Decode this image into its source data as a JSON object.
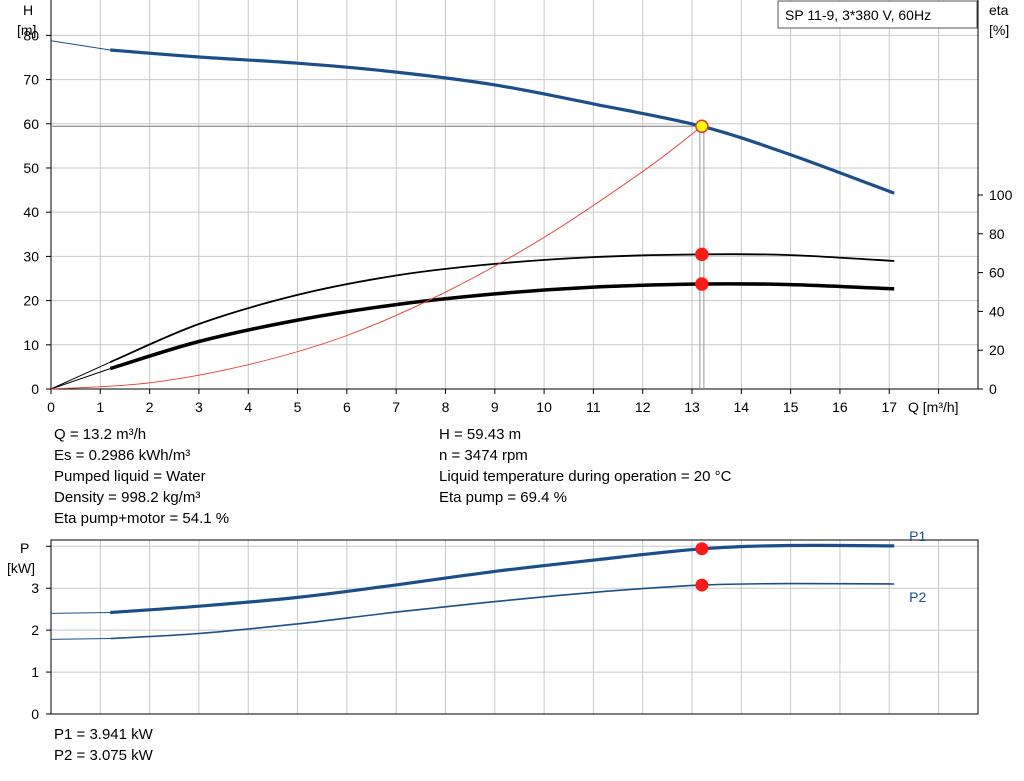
{
  "chart_data": [
    {
      "type": "line",
      "title": "SP 11-9, 3*380 V, 60Hz",
      "xlabel": "Q [m³/h]",
      "ylabel_left": [
        "H",
        "[m]"
      ],
      "ylabel_right": [
        "eta",
        "[%]"
      ],
      "xlim": [
        0,
        18.8
      ],
      "ylim_left": [
        0,
        88
      ],
      "ylim_right": [
        0,
        100
      ],
      "x_ticks": [
        0,
        1,
        2,
        3,
        4,
        5,
        6,
        7,
        8,
        9,
        10,
        11,
        12,
        13,
        14,
        15,
        16,
        17
      ],
      "y_ticks_left": [
        0,
        10,
        20,
        30,
        40,
        50,
        60,
        70,
        80
      ],
      "y_ticks_right": [
        0,
        20,
        40,
        60,
        80,
        100
      ],
      "grid": true,
      "series": [
        {
          "axis": "left",
          "color": "#1a4f8a",
          "width": 3.2,
          "x": [
            1.2,
            3,
            5,
            7,
            9,
            11,
            13.2,
            15,
            17.1
          ],
          "y": [
            76.7,
            75.1,
            73.7,
            71.7,
            68.8,
            64.5,
            59.43,
            53.0,
            44.3
          ]
        },
        {
          "axis": "left",
          "color": "#1a4f8a",
          "width": 1,
          "x": [
            0,
            1.2
          ],
          "y": [
            78.8,
            76.7
          ]
        },
        {
          "axis": "right",
          "color": "#000000",
          "width": 1.8,
          "x": [
            1.2,
            3,
            5,
            7,
            9,
            11,
            13.2,
            15,
            17.1
          ],
          "y": [
            13.8,
            33.5,
            48.5,
            58.5,
            64.5,
            68,
            69.4,
            69,
            66
          ]
        },
        {
          "axis": "right",
          "color": "#000000",
          "width": 1,
          "x": [
            0,
            1.2
          ],
          "y": [
            0,
            13.8
          ]
        },
        {
          "axis": "right",
          "color": "#000000",
          "width": 3.5,
          "x": [
            1.2,
            3,
            5,
            7,
            9,
            11,
            13.2,
            15,
            17.1
          ],
          "y": [
            10.5,
            24.5,
            35.5,
            43.5,
            49,
            52.5,
            54.1,
            53.8,
            51.6
          ]
        },
        {
          "axis": "right",
          "color": "#000000",
          "width": 1,
          "x": [
            0,
            1.2
          ],
          "y": [
            0,
            10.5
          ]
        },
        {
          "axis": "left",
          "color": "#e53935",
          "width": 0.9,
          "x": [
            0,
            2,
            4,
            6,
            8,
            10,
            12,
            13.2
          ],
          "y": [
            0,
            1.4,
            5.5,
            12.1,
            21.9,
            34.3,
            49.2,
            59.43
          ]
        }
      ],
      "points": [
        {
          "x": 13.2,
          "y": 59.43,
          "axis": "left",
          "fill": "#ffff00",
          "stroke": "#e53935"
        },
        {
          "x": 13.2,
          "y": 69.4,
          "axis": "right",
          "fill": "#ff1a1a",
          "stroke": "#ff1a1a"
        },
        {
          "x": 13.2,
          "y": 54.1,
          "axis": "right",
          "fill": "#ff1a1a",
          "stroke": "#ff1a1a"
        }
      ],
      "duty_point": {
        "x": 13.2,
        "y": 59.43
      }
    },
    {
      "type": "line",
      "ylabel_left": [
        "P",
        "[kW]"
      ],
      "xlim": [
        0,
        18.8
      ],
      "ylim": [
        0,
        4.15
      ],
      "y_ticks": [
        0,
        1,
        2,
        3
      ],
      "grid": true,
      "series": [
        {
          "name": "P1",
          "color": "#1a4f8a",
          "width": 3.2,
          "x": [
            1.2,
            3,
            5,
            7,
            9,
            11,
            13.2,
            15,
            17.1
          ],
          "y": [
            2.42,
            2.57,
            2.78,
            3.08,
            3.4,
            3.67,
            3.941,
            4.02,
            4.01
          ]
        },
        {
          "name": "",
          "color": "#1a4f8a",
          "width": 1,
          "x": [
            0,
            1.2
          ],
          "y": [
            2.4,
            2.42
          ]
        },
        {
          "name": "P2",
          "color": "#1a4f8a",
          "width": 1.6,
          "x": [
            1.2,
            3,
            5,
            7,
            9,
            11,
            13.2,
            15,
            17.1
          ],
          "y": [
            1.8,
            1.92,
            2.15,
            2.43,
            2.68,
            2.9,
            3.075,
            3.11,
            3.1
          ]
        },
        {
          "name": "",
          "color": "#1a4f8a",
          "width": 1,
          "x": [
            0,
            1.2
          ],
          "y": [
            1.78,
            1.8
          ]
        }
      ],
      "points": [
        {
          "x": 13.2,
          "y": 3.941,
          "fill": "#ff1a1a"
        },
        {
          "x": 13.2,
          "y": 3.075,
          "fill": "#ff1a1a"
        }
      ]
    }
  ],
  "info_left": [
    "Q = 13.2 m³/h",
    "Es = 0.2986 kWh/m³",
    "Pumped liquid = Water",
    "Density = 998.2 kg/m³",
    "Eta pump+motor = 54.1 %"
  ],
  "info_right": [
    "H = 59.43 m",
    "n = 3474 rpm",
    "Liquid temperature during operation = 20 °C",
    "Eta pump = 69.4 %"
  ],
  "info_power": [
    "P1 = 3.941 kW",
    "P2 = 3.075 kW"
  ]
}
